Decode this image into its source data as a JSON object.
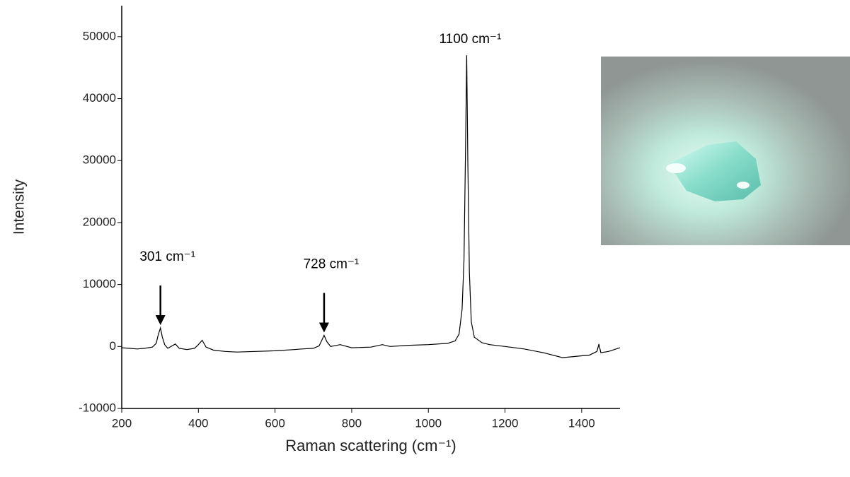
{
  "chart_data": {
    "type": "line",
    "x_label": "Raman scattering (cm⁻¹)",
    "y_label": "Intensity",
    "x": [
      200,
      220,
      240,
      260,
      280,
      290,
      295,
      301,
      306,
      312,
      320,
      340,
      350,
      370,
      390,
      400,
      410,
      420,
      440,
      470,
      500,
      550,
      600,
      650,
      670,
      700,
      715,
      722,
      728,
      735,
      745,
      770,
      800,
      850,
      880,
      900,
      950,
      1000,
      1050,
      1070,
      1080,
      1088,
      1093,
      1097,
      1100,
      1103,
      1107,
      1112,
      1120,
      1140,
      1160,
      1200,
      1250,
      1300,
      1350,
      1400,
      1420,
      1440,
      1445,
      1450,
      1470,
      1500
    ],
    "series": [
      {
        "color": "#000000",
        "values": [
          -200,
          -300,
          -400,
          -300,
          -100,
          500,
          1800,
          3000,
          1500,
          300,
          -300,
          400,
          -300,
          -500,
          -300,
          300,
          1000,
          -100,
          -600,
          -800,
          -900,
          -800,
          -700,
          -500,
          -400,
          -300,
          100,
          1000,
          1800,
          800,
          0,
          300,
          -200,
          -100,
          300,
          0,
          200,
          300,
          500,
          900,
          2000,
          6000,
          14000,
          32000,
          47000,
          30000,
          12000,
          4000,
          1500,
          600,
          300,
          0,
          -400,
          -1000,
          -1800,
          -1500,
          -1400,
          -800,
          400,
          -1000,
          -800,
          -200
        ]
      }
    ],
    "xlim": [
      200,
      1500
    ],
    "xticks": [
      200,
      400,
      600,
      800,
      1000,
      1200,
      1400
    ],
    "ylim": [
      -10000,
      55000
    ],
    "yticks": [
      -10000,
      0,
      10000,
      20000,
      30000,
      40000,
      50000
    ],
    "annotations": [
      {
        "text": "301 cm⁻¹",
        "x": 301,
        "arrow": true
      },
      {
        "text": "728 cm⁻¹",
        "x": 728,
        "arrow": true
      },
      {
        "text": "1100 cm⁻¹",
        "x": 1100,
        "arrow": false
      }
    ]
  }
}
